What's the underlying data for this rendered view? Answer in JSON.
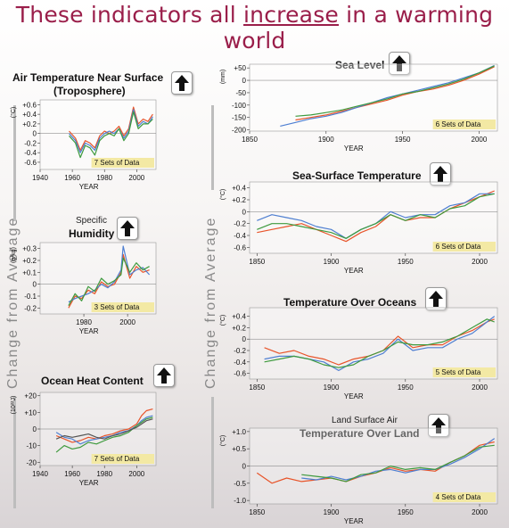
{
  "title_pre": "These indicators all ",
  "title_em": "increase",
  "title_post": " in a warming world",
  "side_label": "Change from Average",
  "colors": {
    "title": "#9a1e4a",
    "badge": "#f3e9a4",
    "series": [
      "#e8542a",
      "#4f7fd1",
      "#3e9a3e",
      "#555555",
      "#e0a21c",
      "#111111",
      "#b05fb0"
    ]
  },
  "icons": {
    "arrow": "up-arrow-icon"
  },
  "chart_data": [
    {
      "id": "troposphere",
      "type": "line",
      "title": "Air Temperature Near Surface",
      "subtitle": "(Troposphere)",
      "ylabel": "(°C)",
      "xlabel": "YEAR",
      "yticks": [
        "+0.6",
        "+0.4",
        "+0.2",
        "0",
        "-0.2",
        "-0.4",
        "-0.6"
      ],
      "ytick_values": [
        0.6,
        0.4,
        0.2,
        0,
        -0.2,
        -0.4,
        -0.6
      ],
      "xticks": [
        "1940",
        "1960",
        "1980",
        "2000"
      ],
      "xtick_values": [
        1940,
        1960,
        1980,
        2000
      ],
      "xlim": [
        1940,
        2012
      ],
      "ylim": [
        -0.75,
        0.7
      ],
      "badge": "7 Sets of Data",
      "series": [
        {
          "x": [
            1958,
            1962,
            1965,
            1968,
            1971,
            1974,
            1977,
            1980,
            1983,
            1986,
            1989,
            1992,
            1995,
            1998,
            2001,
            2004,
            2007,
            2010
          ],
          "values": [
            0.05,
            -0.1,
            -0.35,
            -0.15,
            -0.2,
            -0.3,
            -0.05,
            0.05,
            0.0,
            0.05,
            0.15,
            -0.05,
            0.1,
            0.55,
            0.2,
            0.3,
            0.25,
            0.4
          ]
        },
        {
          "x": [
            1958,
            1962,
            1965,
            1968,
            1971,
            1974,
            1977,
            1980,
            1983,
            1986,
            1989,
            1992,
            1995,
            1998,
            2001,
            2004,
            2007,
            2010
          ],
          "values": [
            0.0,
            -0.15,
            -0.4,
            -0.2,
            -0.25,
            -0.35,
            -0.1,
            0.0,
            0.05,
            0.0,
            0.1,
            -0.1,
            0.05,
            0.5,
            0.15,
            0.25,
            0.2,
            0.35
          ]
        },
        {
          "x": [
            1958,
            1962,
            1965,
            1968,
            1971,
            1974,
            1977,
            1980,
            1983,
            1986,
            1989,
            1992,
            1995,
            1998,
            2001,
            2004,
            2007,
            2010
          ],
          "values": [
            -0.05,
            -0.2,
            -0.5,
            -0.25,
            -0.3,
            -0.45,
            -0.15,
            -0.05,
            0.0,
            -0.05,
            0.1,
            -0.15,
            0.0,
            0.45,
            0.1,
            0.2,
            0.2,
            0.3
          ]
        }
      ]
    },
    {
      "id": "humidity",
      "type": "line",
      "title": "Humidity",
      "subtitle": "Specific",
      "ylabel": "(g/kg)",
      "xlabel": "YEAR",
      "yticks": [
        "+0.3",
        "+0.2",
        "+0.1",
        "0",
        "-0.1",
        "-0.2"
      ],
      "ytick_values": [
        0.3,
        0.2,
        0.1,
        0,
        -0.1,
        -0.2
      ],
      "xticks": [
        "1980",
        "2000"
      ],
      "xtick_values": [
        1980,
        2000
      ],
      "xlim": [
        1960,
        2013
      ],
      "ylim": [
        -0.25,
        0.35
      ],
      "badge": "3 Sets of Data",
      "series": [
        {
          "x": [
            1973,
            1976,
            1979,
            1982,
            1985,
            1988,
            1991,
            1994,
            1997,
            1998,
            2001,
            2004,
            2007,
            2010
          ],
          "values": [
            -0.2,
            -0.1,
            -0.12,
            -0.05,
            -0.08,
            0.02,
            -0.02,
            0.0,
            0.1,
            0.25,
            0.05,
            0.15,
            0.1,
            0.12
          ]
        },
        {
          "x": [
            1973,
            1976,
            1979,
            1982,
            1985,
            1988,
            1991,
            1994,
            1997,
            1998,
            2001,
            2004,
            2007,
            2010
          ],
          "values": [
            -0.15,
            -0.12,
            -0.1,
            -0.08,
            -0.05,
            0.0,
            -0.03,
            0.02,
            0.12,
            0.32,
            0.08,
            0.12,
            0.14,
            0.08
          ]
        },
        {
          "x": [
            1973,
            1976,
            1979,
            1982,
            1985,
            1988,
            1991,
            1994,
            1997,
            1998,
            2001,
            2004,
            2007,
            2010
          ],
          "values": [
            -0.18,
            -0.08,
            -0.14,
            -0.02,
            -0.06,
            0.05,
            0.0,
            0.03,
            0.08,
            0.22,
            0.1,
            0.18,
            0.12,
            0.15
          ]
        }
      ]
    },
    {
      "id": "ocean-heat",
      "type": "line",
      "title": "Ocean Heat Content",
      "subtitle": "",
      "ylabel": "(10²²J)",
      "xlabel": "YEAR",
      "yticks": [
        "+20",
        "+10",
        "0",
        "-10",
        "-20"
      ],
      "ytick_values": [
        20,
        10,
        0,
        -10,
        -20
      ],
      "xticks": [
        "1940",
        "1960",
        "1980",
        "2000"
      ],
      "xtick_values": [
        1940,
        1960,
        1980,
        2000
      ],
      "xlim": [
        1940,
        2012
      ],
      "ylim": [
        -22,
        22
      ],
      "badge": "7 Sets of Data",
      "series": [
        {
          "x": [
            1950,
            1955,
            1960,
            1965,
            1970,
            1975,
            1980,
            1985,
            1990,
            1995,
            2000,
            2003,
            2006,
            2010
          ],
          "values": [
            -4,
            -6,
            -8,
            -7,
            -5,
            -6,
            -4,
            -3,
            -1,
            0,
            3,
            8,
            11,
            12
          ]
        },
        {
          "x": [
            1950,
            1955,
            1960,
            1965,
            1970,
            1975,
            1980,
            1985,
            1990,
            1995,
            2000,
            2003,
            2006,
            2010
          ],
          "values": [
            -2,
            -5,
            -6,
            -9,
            -7,
            -6,
            -5,
            -4,
            -2,
            -1,
            2,
            5,
            7,
            8
          ]
        },
        {
          "x": [
            1950,
            1955,
            1960,
            1965,
            1970,
            1975,
            1980,
            1985,
            1990,
            1995,
            2000,
            2003,
            2006,
            2010
          ],
          "values": [
            -14,
            -10,
            -12,
            -11,
            -8,
            -9,
            -7,
            -5,
            -4,
            -2,
            2,
            4,
            6,
            7
          ]
        },
        {
          "x": [
            1950,
            1955,
            1960,
            1965,
            1970,
            1975,
            1980,
            1985,
            1990,
            1995,
            2000,
            2003,
            2006,
            2010
          ],
          "values": [
            -6,
            -4,
            -5,
            -4,
            -3,
            -5,
            -6,
            -4,
            -3,
            -1,
            1,
            3,
            5,
            6
          ]
        }
      ]
    },
    {
      "id": "sea-level",
      "type": "line",
      "title": "Sea Level",
      "subtitle": "",
      "ylabel": "(mm)",
      "xlabel": "YEAR",
      "yticks": [
        "+50",
        "0",
        "-50",
        "-100",
        "-150",
        "-200"
      ],
      "ytick_values": [
        50,
        0,
        -50,
        -100,
        -150,
        -200
      ],
      "xticks": [
        "1850",
        "1900",
        "1950",
        "2000"
      ],
      "xtick_values": [
        1850,
        1900,
        1950,
        2000
      ],
      "xlim": [
        1850,
        2012
      ],
      "ylim": [
        -205,
        65
      ],
      "badge": "6 Sets of Data",
      "series": [
        {
          "x": [
            1880,
            1890,
            1900,
            1910,
            1920,
            1930,
            1940,
            1950,
            1960,
            1970,
            1980,
            1990,
            2000,
            2010
          ],
          "values": [
            -160,
            -150,
            -140,
            -125,
            -110,
            -95,
            -80,
            -60,
            -45,
            -35,
            -20,
            0,
            25,
            55
          ]
        },
        {
          "x": [
            1870,
            1880,
            1890,
            1900,
            1910,
            1920,
            1930,
            1940,
            1950,
            1960,
            1970,
            1980,
            1990,
            2000,
            2010
          ],
          "values": [
            -185,
            -170,
            -155,
            -145,
            -130,
            -110,
            -90,
            -70,
            -55,
            -40,
            -25,
            -10,
            10,
            30,
            60
          ]
        },
        {
          "x": [
            1880,
            1890,
            1900,
            1910,
            1920,
            1930,
            1940,
            1950,
            1960,
            1970,
            1980,
            1990,
            2000,
            2010
          ],
          "values": [
            -145,
            -140,
            -130,
            -120,
            -105,
            -90,
            -75,
            -55,
            -45,
            -30,
            -15,
            5,
            30,
            58
          ]
        }
      ]
    },
    {
      "id": "sst",
      "type": "line",
      "title": "Sea-Surface Temperature",
      "subtitle": "",
      "ylabel": "(°C)",
      "xlabel": "YEAR",
      "yticks": [
        "+0.4",
        "+0.2",
        "0",
        "-0.2",
        "-0.4",
        "-0.6"
      ],
      "ytick_values": [
        0.4,
        0.2,
        0,
        -0.2,
        -0.4,
        -0.6
      ],
      "xticks": [
        "1850",
        "1900",
        "1950",
        "2000"
      ],
      "xtick_values": [
        1850,
        1900,
        1950,
        2000
      ],
      "xlim": [
        1845,
        2012
      ],
      "ylim": [
        -0.7,
        0.5
      ],
      "badge": "6 Sets of Data",
      "series": [
        {
          "x": [
            1850,
            1860,
            1870,
            1880,
            1890,
            1900,
            1910,
            1920,
            1930,
            1940,
            1950,
            1960,
            1970,
            1980,
            1990,
            2000,
            2010
          ],
          "values": [
            -0.35,
            -0.3,
            -0.25,
            -0.2,
            -0.3,
            -0.4,
            -0.5,
            -0.35,
            -0.25,
            -0.05,
            -0.15,
            -0.1,
            -0.1,
            0.05,
            0.15,
            0.25,
            0.35
          ]
        },
        {
          "x": [
            1850,
            1860,
            1870,
            1880,
            1890,
            1900,
            1910,
            1920,
            1930,
            1940,
            1950,
            1960,
            1970,
            1980,
            1990,
            2000,
            2010
          ],
          "values": [
            -0.15,
            -0.05,
            -0.1,
            -0.15,
            -0.25,
            -0.3,
            -0.45,
            -0.3,
            -0.2,
            0.0,
            -0.1,
            -0.05,
            -0.05,
            0.1,
            0.15,
            0.3,
            0.3
          ]
        },
        {
          "x": [
            1850,
            1860,
            1870,
            1880,
            1890,
            1900,
            1910,
            1920,
            1930,
            1940,
            1950,
            1960,
            1970,
            1980,
            1990,
            2000,
            2010
          ],
          "values": [
            -0.3,
            -0.2,
            -0.2,
            -0.25,
            -0.3,
            -0.35,
            -0.45,
            -0.3,
            -0.2,
            -0.05,
            -0.15,
            -0.05,
            -0.1,
            0.05,
            0.1,
            0.25,
            0.3
          ]
        }
      ]
    },
    {
      "id": "ocean-temp",
      "type": "line",
      "title": "Temperature Over Oceans",
      "subtitle": "",
      "ylabel": "(°C)",
      "xlabel": "YEAR",
      "yticks": [
        "+0.4",
        "+0.2",
        "0",
        "-0.2",
        "-0.4",
        "-0.6"
      ],
      "ytick_values": [
        0.4,
        0.2,
        0,
        -0.2,
        -0.4,
        -0.6
      ],
      "xticks": [
        "1850",
        "1900",
        "1950",
        "2000"
      ],
      "xtick_values": [
        1850,
        1900,
        1950,
        2000
      ],
      "xlim": [
        1845,
        2012
      ],
      "ylim": [
        -0.7,
        0.55
      ],
      "badge": "5 Sets of Data",
      "series": [
        {
          "x": [
            1855,
            1865,
            1875,
            1885,
            1895,
            1905,
            1915,
            1925,
            1935,
            1945,
            1955,
            1965,
            1975,
            1985,
            1995,
            2005,
            2010
          ],
          "values": [
            -0.15,
            -0.25,
            -0.2,
            -0.3,
            -0.35,
            -0.45,
            -0.35,
            -0.3,
            -0.2,
            0.05,
            -0.15,
            -0.1,
            -0.1,
            0.05,
            0.15,
            0.3,
            0.35
          ]
        },
        {
          "x": [
            1855,
            1865,
            1875,
            1885,
            1895,
            1905,
            1915,
            1925,
            1935,
            1945,
            1955,
            1965,
            1975,
            1985,
            1995,
            2005,
            2010
          ],
          "values": [
            -0.35,
            -0.3,
            -0.3,
            -0.35,
            -0.4,
            -0.55,
            -0.4,
            -0.35,
            -0.25,
            0.0,
            -0.2,
            -0.15,
            -0.15,
            0.0,
            0.1,
            0.3,
            0.4
          ]
        },
        {
          "x": [
            1855,
            1865,
            1875,
            1885,
            1895,
            1905,
            1915,
            1925,
            1935,
            1945,
            1955,
            1965,
            1975,
            1985,
            1995,
            2005,
            2010
          ],
          "values": [
            -0.4,
            -0.35,
            -0.3,
            -0.35,
            -0.45,
            -0.5,
            -0.45,
            -0.3,
            -0.2,
            -0.05,
            -0.1,
            -0.1,
            -0.05,
            0.05,
            0.2,
            0.35,
            0.3
          ]
        }
      ]
    },
    {
      "id": "land-temp",
      "type": "line",
      "title": "Temperature Over Land",
      "subtitle": "Land Surface Air",
      "ylabel": "(°C)",
      "xlabel": "YEAR",
      "yticks": [
        "+1.0",
        "+0.5",
        "0",
        "-0.5",
        "-1.0"
      ],
      "ytick_values": [
        1.0,
        0.5,
        0,
        -0.5,
        -1.0
      ],
      "xticks": [
        "1850",
        "1900",
        "1950",
        "2000"
      ],
      "xtick_values": [
        1850,
        1900,
        1950,
        2000
      ],
      "xlim": [
        1845,
        2012
      ],
      "ylim": [
        -1.1,
        1.1
      ],
      "badge": "4 Sets of Data",
      "series": [
        {
          "x": [
            1850,
            1860,
            1870,
            1880,
            1890,
            1900,
            1910,
            1920,
            1930,
            1940,
            1950,
            1960,
            1970,
            1980,
            1990,
            2000,
            2010
          ],
          "values": [
            -0.2,
            -0.5,
            -0.35,
            -0.45,
            -0.4,
            -0.35,
            -0.45,
            -0.3,
            -0.2,
            -0.05,
            -0.15,
            -0.1,
            -0.15,
            0.1,
            0.3,
            0.6,
            0.7
          ]
        },
        {
          "x": [
            1880,
            1890,
            1900,
            1910,
            1920,
            1930,
            1940,
            1950,
            1960,
            1970,
            1980,
            1990,
            2000,
            2010
          ],
          "values": [
            -0.35,
            -0.4,
            -0.3,
            -0.4,
            -0.3,
            -0.15,
            -0.1,
            -0.2,
            -0.1,
            -0.1,
            0.05,
            0.25,
            0.5,
            0.8
          ]
        },
        {
          "x": [
            1880,
            1890,
            1900,
            1910,
            1920,
            1930,
            1940,
            1950,
            1960,
            1970,
            1980,
            1990,
            2000,
            2010
          ],
          "values": [
            -0.25,
            -0.3,
            -0.35,
            -0.45,
            -0.25,
            -0.2,
            0.0,
            -0.1,
            -0.05,
            -0.1,
            0.1,
            0.3,
            0.55,
            0.6
          ]
        }
      ]
    }
  ]
}
